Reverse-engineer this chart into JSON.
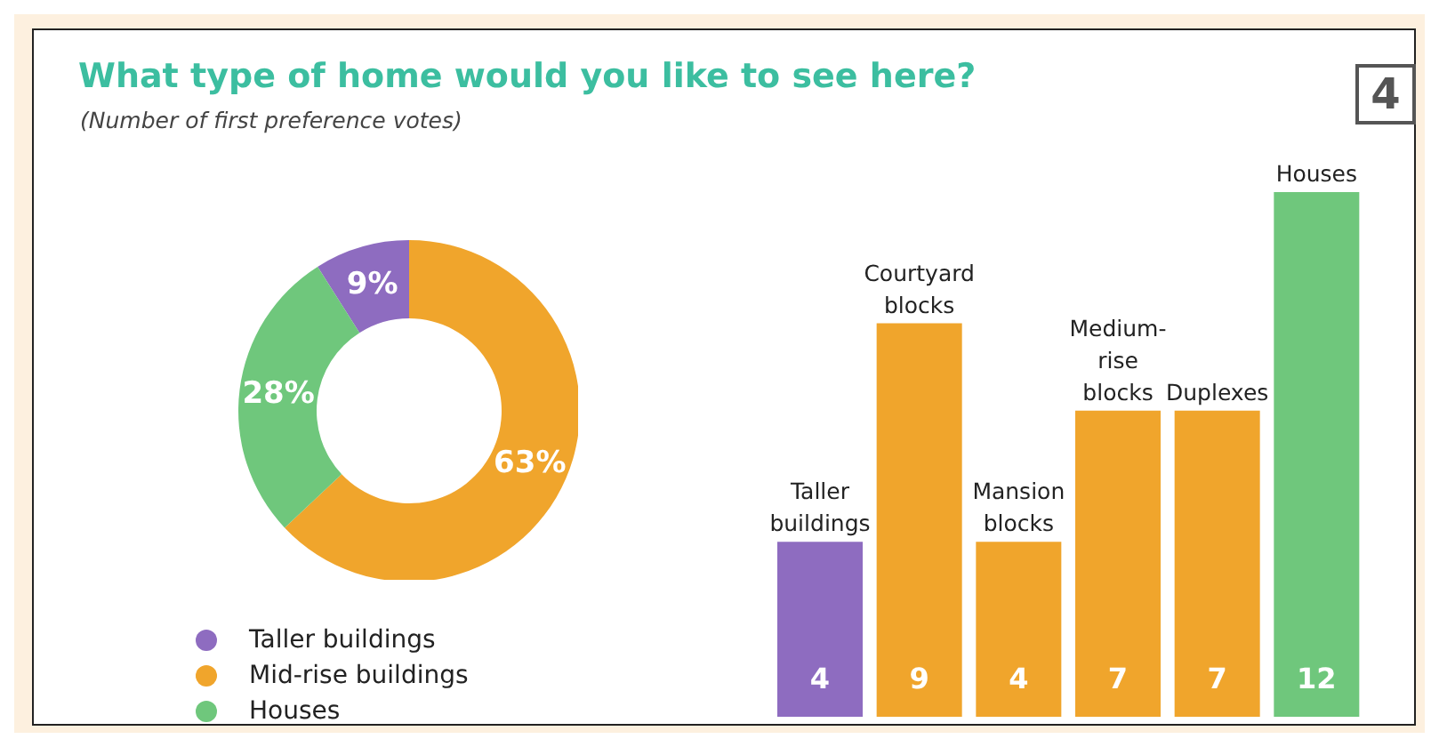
{
  "chart_data": [
    {
      "type": "donut",
      "title": "What type of home would you like to see here?",
      "subtitle": "(Number of first preference votes)",
      "categories": [
        "Taller buildings",
        "Mid-rise buildings",
        "Houses"
      ],
      "values": [
        9,
        63,
        28
      ],
      "value_labels": [
        "9%",
        "63%",
        "28%"
      ],
      "colors": [
        "#8e6cc0",
        "#f0a52c",
        "#6fc77c"
      ],
      "legend": "bottom left"
    },
    {
      "type": "bar",
      "annotations": [
        "4"
      ],
      "categories": [
        "Taller buildings",
        "Courtyard blocks",
        "Mansion blocks",
        "Medium-rise blocks",
        "Duplexes",
        "Houses"
      ],
      "values": [
        4,
        9,
        4,
        7,
        7,
        12
      ],
      "colors": [
        "#8e6cc0",
        "#f0a52c",
        "#f0a52c",
        "#f0a52c",
        "#f0a52c",
        "#6fc77c"
      ],
      "data_labels": true
    }
  ]
}
